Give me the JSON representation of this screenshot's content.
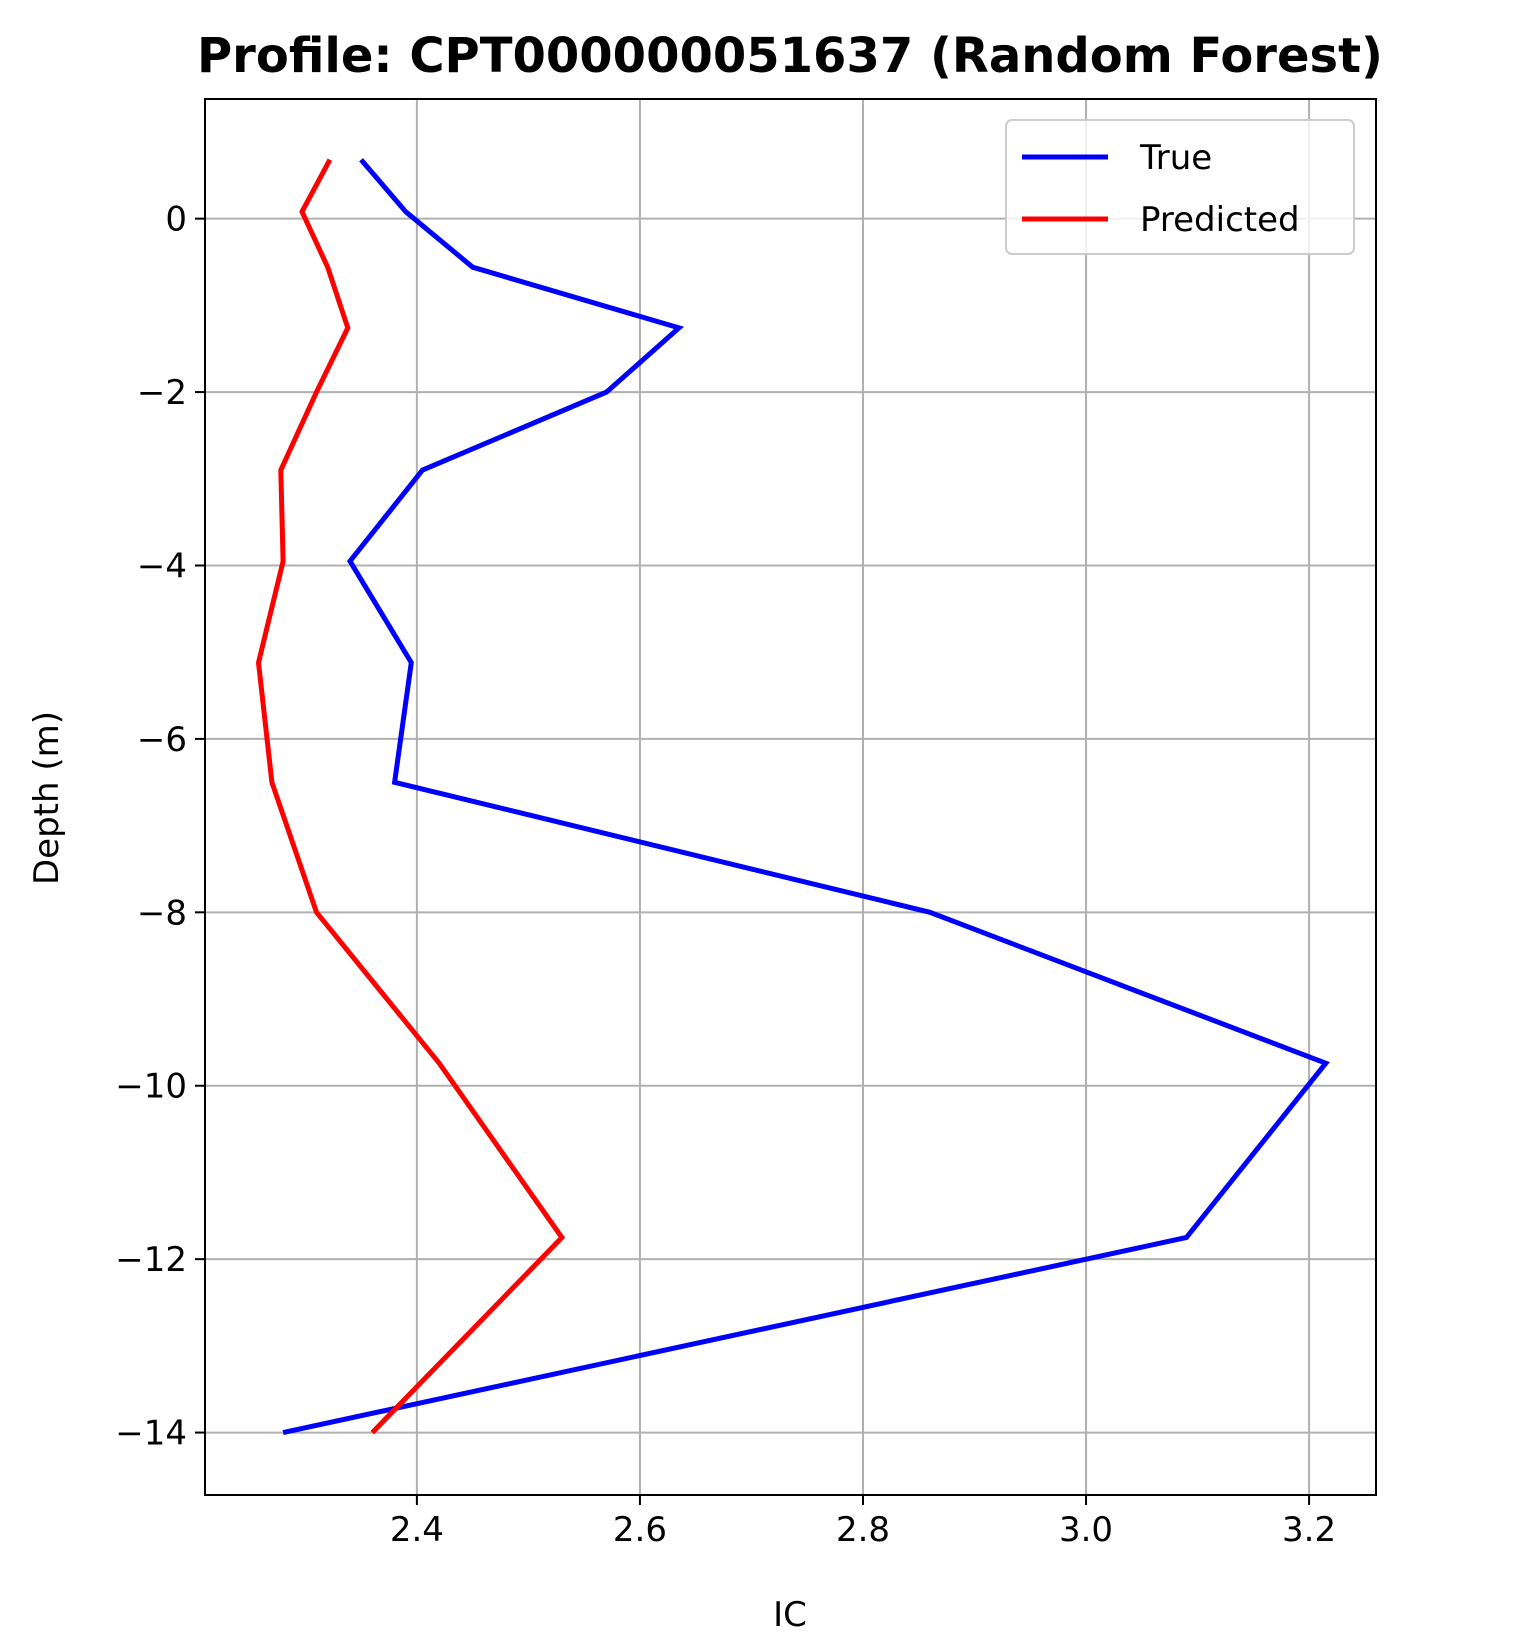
{
  "chart_data": {
    "type": "line",
    "title": "Profile: CPT000000051637 (Random Forest)",
    "xlabel": "IC",
    "ylabel": "Depth (m)",
    "xlim": [
      2.21,
      3.26
    ],
    "ylim": [
      -14.72,
      1.38
    ],
    "xticks": [
      2.4,
      2.6,
      2.8,
      3.0,
      3.2
    ],
    "xtick_labels": [
      "2.4",
      "2.6",
      "2.8",
      "3.0",
      "3.2"
    ],
    "yticks": [
      0,
      -2,
      -4,
      -6,
      -8,
      -10,
      -12,
      -14
    ],
    "ytick_labels": [
      "0",
      "−2",
      "−4",
      "−6",
      "−8",
      "−10",
      "−12",
      "−14"
    ],
    "grid": true,
    "legend_position": "top-right",
    "series": [
      {
        "name": "True",
        "color": "#0000ff",
        "points": [
          [
            2.35,
            0.68
          ],
          [
            2.39,
            0.08
          ],
          [
            2.45,
            -0.56
          ],
          [
            2.635,
            -1.26
          ],
          [
            2.57,
            -2.0
          ],
          [
            2.405,
            -2.9
          ],
          [
            2.34,
            -3.95
          ],
          [
            2.395,
            -5.12
          ],
          [
            2.38,
            -6.5
          ],
          [
            2.86,
            -8.0
          ],
          [
            3.215,
            -9.74
          ],
          [
            3.09,
            -11.75
          ],
          [
            2.28,
            -14.0
          ]
        ]
      },
      {
        "name": "Predicted",
        "color": "#ff0000",
        "points": [
          [
            2.322,
            0.68
          ],
          [
            2.297,
            0.08
          ],
          [
            2.32,
            -0.56
          ],
          [
            2.338,
            -1.26
          ],
          [
            2.31,
            -2.0
          ],
          [
            2.278,
            -2.9
          ],
          [
            2.28,
            -3.95
          ],
          [
            2.258,
            -5.12
          ],
          [
            2.27,
            -6.5
          ],
          [
            2.31,
            -8.0
          ],
          [
            2.42,
            -9.74
          ],
          [
            2.53,
            -11.75
          ],
          [
            2.36,
            -14.0
          ]
        ]
      }
    ]
  }
}
